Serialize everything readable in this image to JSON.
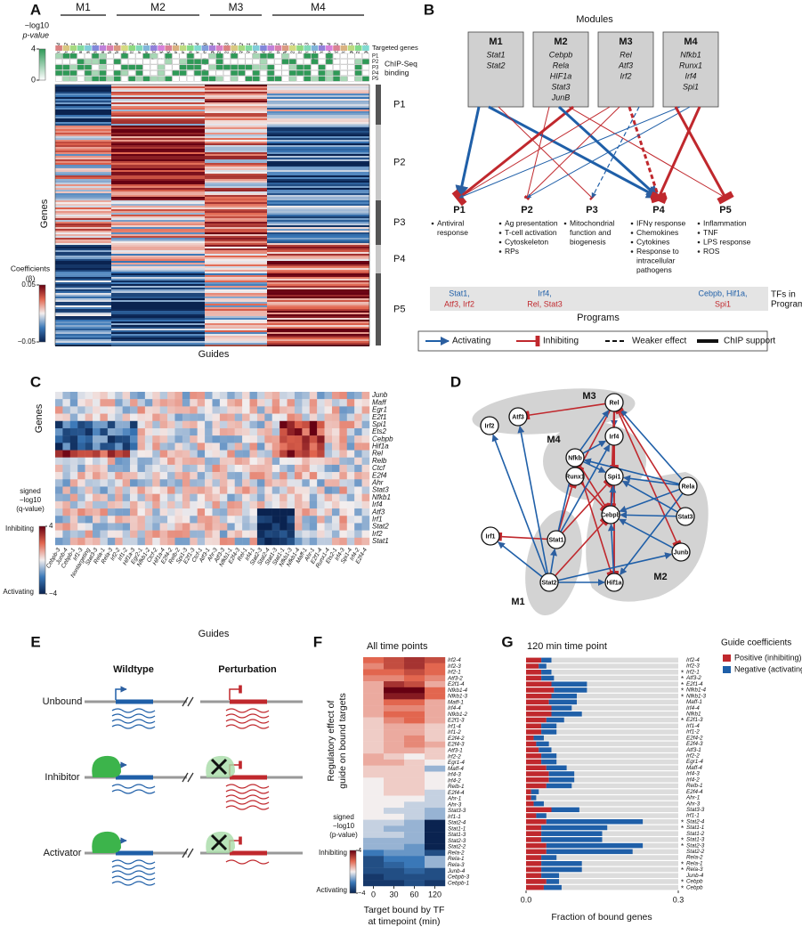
{
  "panels": {
    "A": {
      "label": "A",
      "modules": [
        "M1",
        "M2",
        "M3",
        "M4"
      ],
      "guides": [
        "Irf1-4",
        "Irf2-2",
        "Irf1-1",
        "Stat1-1",
        "Stat2-1",
        "Stat2-3",
        "Stat3-3",
        "Maff-1",
        "Maff-4",
        "Ets2-3",
        "Ets2-2",
        "Relb-1",
        "Rela-1",
        "Nfkb1-3",
        "Cebpb-3",
        "Cebpb-1",
        "Rela-2",
        "Rela-3",
        "Stat3-1",
        "Junb-4",
        "Nontargeting",
        "Egr2-4",
        "E2f4-4",
        "E2f1-3",
        "E2f1-2",
        "Rel-2",
        "Rel-1",
        "Rel-3",
        "Atf3-1",
        "Irf2-1",
        "Spi1-1",
        "Ahr-1",
        "E2f4-2",
        "Ets2-1",
        "Irf4-3",
        "Nfkb1-4",
        "Irf4-4",
        "Runx1-4",
        "Nfkb1-2",
        "Irf4-1",
        "Egr2-3",
        "E2f4-3",
        "Egr1-3"
      ],
      "pvalue_title": [
        "−log10",
        "p-value"
      ],
      "pvalue_ticks": [
        4,
        0
      ],
      "targeted_genes": "Targeted genes",
      "chip_rows": [
        "P1",
        "P2",
        "P3",
        "P4",
        "P5"
      ],
      "chip_title": [
        "ChIP-Seq",
        "binding"
      ],
      "programs": [
        "P1",
        "P2",
        "P3",
        "P4",
        "P5"
      ],
      "y_label": "Genes",
      "x_label": "Guides",
      "coef_title": [
        "Coefficients",
        "(β)"
      ],
      "coef_ticks": [
        0.05,
        {
          "value": -0.05,
          "label": "−0.05"
        }
      ]
    },
    "B": {
      "label": "B",
      "title": "Modules",
      "modules": [
        {
          "name": "M1",
          "tfs": [
            "Stat1",
            "Stat2"
          ]
        },
        {
          "name": "M2",
          "tfs": [
            "Cebpb",
            "Rela",
            "HIF1a",
            "Stat3",
            "JunB"
          ]
        },
        {
          "name": "M3",
          "tfs": [
            "Rel",
            "Atf3",
            "Irf2"
          ]
        },
        {
          "name": "M4",
          "tfs": [
            "Nfkb1",
            "Runx1",
            "Irf4",
            "Spi1"
          ]
        }
      ],
      "programs": [
        {
          "name": "P1",
          "items": [
            [
              "Antiviral",
              "response"
            ]
          ]
        },
        {
          "name": "P2",
          "items": [
            [
              "Ag presentation"
            ],
            [
              "T-cell activation"
            ],
            [
              "Cytoskeleton"
            ],
            [
              "RPs"
            ]
          ]
        },
        {
          "name": "P3",
          "items": [
            [
              "Mitochondrial",
              "function and",
              "biogenesis"
            ]
          ]
        },
        {
          "name": "P4",
          "items": [
            [
              "IFNγ response"
            ],
            [
              "Chemokines"
            ],
            [
              "Cytokines"
            ],
            [
              "Response to",
              "intracellular",
              "pathogens"
            ]
          ]
        },
        {
          "name": "P5",
          "items": [
            [
              "Inflammation"
            ],
            [
              "TNF"
            ],
            [
              "LPS response"
            ],
            [
              "ROS"
            ]
          ]
        }
      ],
      "tf_groups": [
        {
          "activating": "Stat1,",
          "inhibiting": "Atf3, Irf2"
        },
        {
          "activating": "Irf4,",
          "inhibiting": "Rel, Stat3"
        },
        {
          "activating": "Cebpb, Hif1a,",
          "inhibiting": "Spi1"
        }
      ],
      "tf_title": [
        "TFs in",
        "Programs"
      ],
      "programs_title": "Programs",
      "legend": [
        "Activating",
        "Inhibiting",
        "Weaker effect",
        "ChIP support"
      ]
    },
    "C": {
      "label": "C",
      "genes": [
        "Junb",
        "Maff",
        "Egr1",
        "E2f1",
        "Spi1",
        "Ets2",
        "Cebpb",
        "Hif1a",
        "Rel",
        "Relb",
        "Ctcf",
        "E2f4",
        "Ahr",
        "Stat3",
        "Nfkb1",
        "Irf4",
        "Atf3",
        "Irf1",
        "Stat2",
        "Irf2",
        "Stat1"
      ],
      "guides": [
        "Cebpb-3",
        "Junb-4",
        "Cebpb-1",
        "Irf1-3",
        "Nontargeting",
        "Stat3-3",
        "Rela-1",
        "Rela-3",
        "Irf2-2",
        "Irf1-2",
        "Hif1a-3",
        "Egr2-1",
        "Nfkb1-2",
        "Ctcf-2",
        "Hif1a-4",
        "E2f4-2",
        "Relb-2",
        "Spi1-3",
        "E2f1-3",
        "Ctcf-1",
        "Atf3-1",
        "Ahr-3",
        "Atf3-3",
        "Nfkb1-1",
        "E2f4-3",
        "Rel-1",
        "Irf4-1",
        "Stat2-3",
        "Stat2-4",
        "Stat1-3",
        "Stat1-1",
        "Nfkb1-3",
        "Nfkb1-4",
        "Maff-1",
        "Ahr-1",
        "E2f1-4",
        "Runx1-4",
        "Ets2-1",
        "Irf4-3",
        "Spi1-4",
        "Irf4-2",
        "E2f4-4"
      ],
      "y_label": "Genes",
      "x_label": "Guides",
      "legend_title": [
        "signed",
        "−log10",
        "(q-value)"
      ],
      "inhibiting": "Inhibiting",
      "activating": "Activating",
      "ticks": [
        4,
        {
          "value": -4,
          "label": "−4"
        }
      ]
    },
    "D": {
      "label": "D",
      "nodes": [
        "Rel",
        "Atf3",
        "Irf2",
        "Irf4",
        "Nfkb",
        "Spi1",
        "Runx1",
        "Cebpb",
        "Rela",
        "Stat3",
        "Irf1",
        "Stat1",
        "Junb",
        "Stat2",
        "Hif1a"
      ],
      "modules": [
        "M3",
        "M4",
        "M2",
        "M1"
      ]
    },
    "E": {
      "label": "E",
      "columns": [
        "Wildtype",
        "Perturbation"
      ],
      "rows": [
        "Unbound",
        "Inhibitor",
        "Activator"
      ]
    },
    "F": {
      "label": "F",
      "type": "heatmap",
      "title": "All time points",
      "rows": [
        "Irf2-4",
        "Irf2-3",
        "Irf2-1",
        "Atf3-2",
        "E2f1-4",
        "Nfkb1-4",
        "Nfkb1-3",
        "Maff-1",
        "Irf4-4",
        "Nfkb1-2",
        "E2f1-3",
        "Irf1-4",
        "Irf1-2",
        "E2f4-2",
        "E2f4-3",
        "Atf3-1",
        "Irf2-2",
        "Egr1-4",
        "Maff-4",
        "Irf4-3",
        "Irf4-2",
        "Relb-1",
        "E2f4-4",
        "Ahr-1",
        "Ahr-3",
        "Stat3-3",
        "Irf1-1",
        "Stat2-4",
        "Stat1-1",
        "Stat1-3",
        "Stat2-3",
        "Stat2-2",
        "Rela-2",
        "Rela-1",
        "Rela-3",
        "Junb-4",
        "Cebpb-3",
        "Cebpb-1"
      ],
      "columns": [
        0,
        30,
        60,
        120
      ],
      "values": [
        [
          2,
          2.5,
          3,
          2.5
        ],
        [
          1.5,
          2.5,
          3,
          2
        ],
        [
          2,
          2,
          2.5,
          2
        ],
        [
          1.5,
          1.5,
          2,
          1.5
        ],
        [
          1,
          3,
          2.5,
          1
        ],
        [
          1,
          4,
          4,
          2
        ],
        [
          1,
          3.5,
          3.5,
          2
        ],
        [
          1,
          2,
          2,
          1
        ],
        [
          1,
          1.5,
          1.5,
          1
        ],
        [
          1,
          2,
          2,
          1
        ],
        [
          0.5,
          1.5,
          2,
          1
        ],
        [
          0.5,
          1,
          1,
          0.5
        ],
        [
          0.5,
          1,
          1,
          0.5
        ],
        [
          0.5,
          1,
          1.5,
          0.5
        ],
        [
          0.5,
          1,
          1.5,
          1
        ],
        [
          0.5,
          1,
          1,
          0.5
        ],
        [
          1,
          0.5,
          0,
          0.5
        ],
        [
          1,
          1,
          0.5,
          0
        ],
        [
          0.5,
          0.5,
          0.5,
          -1
        ],
        [
          0.5,
          0.5,
          0.5,
          0
        ],
        [
          0,
          0.5,
          0.5,
          0
        ],
        [
          0,
          0.5,
          0.5,
          0
        ],
        [
          0,
          0.5,
          0.5,
          -0.5
        ],
        [
          0,
          0,
          0,
          -0.5
        ],
        [
          0,
          0,
          -0.5,
          -0.5
        ],
        [
          0,
          -0.5,
          -0.5,
          -1
        ],
        [
          0,
          0,
          -0.5,
          -1
        ],
        [
          -0.5,
          -0.5,
          -1,
          -4
        ],
        [
          -0.5,
          -1,
          -1,
          -4
        ],
        [
          -0.5,
          -0.5,
          -1,
          -4
        ],
        [
          -1,
          -1,
          -1,
          -4
        ],
        [
          -1,
          -1,
          -1.5,
          -4
        ],
        [
          -2,
          -1.5,
          -1.5,
          -3
        ],
        [
          -3,
          -2,
          -2,
          -1
        ],
        [
          -3,
          -2.5,
          -2,
          -1
        ],
        [
          -3,
          -3,
          -2.5,
          -3
        ],
        [
          -3.5,
          -3,
          -3,
          -3
        ],
        [
          -3.5,
          -3.5,
          -3,
          -3.5
        ]
      ],
      "clim": [
        -4,
        4
      ],
      "y_label": [
        "Regulatory effect of",
        "guide on bound targets"
      ],
      "x_label": [
        "Target bound by TF",
        "at timepoint (min)"
      ],
      "legend_title": [
        "signed",
        "−log10",
        "(p-value)"
      ],
      "inhibiting": "Inhibiting",
      "activating": "Activating",
      "cticks": [
        4,
        {
          "value": -4,
          "label": "−4"
        }
      ]
    },
    "G": {
      "label": "G",
      "type": "bar",
      "title": "120 min time point",
      "categories": [
        "Irf2-4",
        "Irf2-3",
        "Irf2-1",
        "Atf3-2",
        "E2f1-4",
        "Nfkb1-4",
        "Nfkb1-3",
        "Maff-1",
        "Irf4-4",
        "Nfkb1",
        "E2f1-3",
        "Irf1-4",
        "Irf1-2",
        "E2f4-2",
        "E2f4-3",
        "Atf3-1",
        "Irf2-2",
        "Egr1-4",
        "Maff-4",
        "Irf4-3",
        "Irf4-2",
        "Relb-1",
        "E2f4-4",
        "Ahr-1",
        "Ahr-3",
        "Stat3-3",
        "Irf1-1",
        "Stat2-4",
        "Stat1-1",
        "Stat1-2",
        "Stat1-3",
        "Stat2-3",
        "Stat2-2",
        "Rela-2",
        "Rela-1",
        "Rela-3",
        "Junb-4",
        "Cebpb",
        "Cebpb"
      ],
      "marker": "*",
      "starred": [
        false,
        false,
        true,
        true,
        true,
        true,
        true,
        false,
        false,
        false,
        true,
        false,
        false,
        false,
        false,
        false,
        false,
        false,
        false,
        false,
        false,
        false,
        false,
        false,
        false,
        false,
        false,
        true,
        true,
        false,
        true,
        true,
        false,
        false,
        true,
        true,
        false,
        true,
        true
      ],
      "series": [
        {
          "name": "Positive (inhibiting)",
          "color": "#c0282d",
          "values": [
            0.03,
            0.025,
            0.03,
            0.03,
            0.05,
            0.055,
            0.05,
            0.045,
            0.05,
            0.05,
            0.04,
            0.03,
            0.03,
            0.015,
            0.02,
            0.025,
            0.03,
            0.03,
            0.04,
            0.045,
            0.045,
            0.04,
            0.01,
            0.01,
            0.015,
            0.05,
            0.02,
            0.04,
            0.03,
            0.03,
            0.03,
            0.04,
            0.04,
            0.03,
            0.03,
            0.03,
            0.03,
            0.04,
            0.035
          ]
        },
        {
          "name": "Negative (activating)",
          "color": "#1f5fa8",
          "values": [
            0.02,
            0.015,
            0.02,
            0.025,
            0.07,
            0.065,
            0.05,
            0.055,
            0.04,
            0.06,
            0.035,
            0.03,
            0.03,
            0.02,
            0.025,
            0.025,
            0.03,
            0.03,
            0.04,
            0.05,
            0.05,
            0.05,
            0.015,
            0.01,
            0.02,
            0.055,
            0.02,
            0.19,
            0.13,
            0.12,
            0.12,
            0.19,
            0.17,
            0.03,
            0.08,
            0.08,
            0.035,
            0.025,
            0.035
          ]
        }
      ],
      "legend_title": "Guide coefficients",
      "x_label": "Fraction of bound genes",
      "xlim": [
        0,
        0.3
      ],
      "xticks": [
        {
          "value": 0,
          "label": "0.0"
        },
        0.3
      ]
    }
  }
}
